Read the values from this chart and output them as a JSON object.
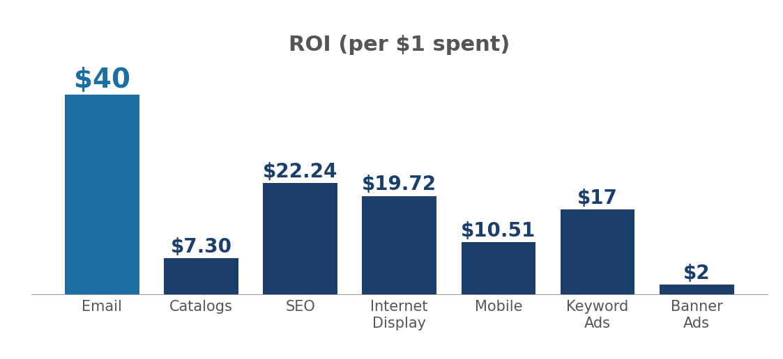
{
  "categories": [
    "Email",
    "Catalogs",
    "SEO",
    "Internet\nDisplay",
    "Mobile",
    "Keyword\nAds",
    "Banner\nAds"
  ],
  "values": [
    40,
    7.3,
    22.24,
    19.72,
    10.51,
    17,
    2
  ],
  "labels": [
    "$40",
    "$7.30",
    "$22.24",
    "$19.72",
    "$10.51",
    "$17",
    "$2"
  ],
  "bar_color_email": "#1C6FA0",
  "bar_color_others": "#1B3F6A",
  "title": "ROI (per $1 spent)",
  "title_fontsize": 22,
  "title_color": "#555555",
  "label_fontsize_email": 28,
  "label_fontsize_others": 20,
  "label_color_email": "#1C6FA0",
  "label_color_others": "#1B3F6A",
  "xlabel_fontsize": 15,
  "xlabel_color": "#555555",
  "ylim": [
    0,
    46
  ],
  "bar_width": 0.75,
  "background_color": "#ffffff"
}
